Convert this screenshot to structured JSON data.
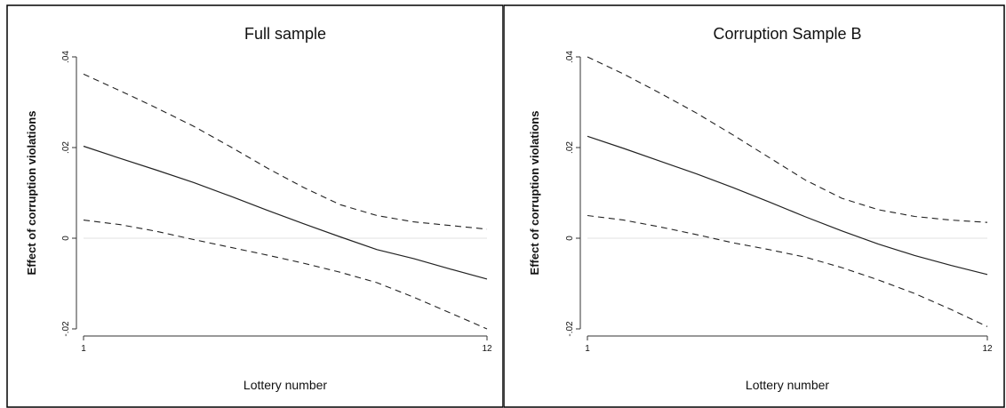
{
  "chart_data": [
    {
      "type": "line",
      "title": "Full sample",
      "xlabel": "Lottery number",
      "ylabel": "Effect of corruption violations",
      "xlim": [
        1,
        12
      ],
      "ylim": [
        -0.02,
        0.04
      ],
      "xticks": [
        {
          "value": 1,
          "label": "1"
        },
        {
          "value": 12,
          "label": "12"
        }
      ],
      "yticks": [
        {
          "value": -0.02,
          "label": "-.02"
        },
        {
          "value": 0,
          "label": "0"
        },
        {
          "value": 0.02,
          "label": ".02"
        },
        {
          "value": 0.04,
          "label": ".04"
        }
      ],
      "reference_line_y": 0,
      "x": [
        1,
        2,
        3,
        4,
        5,
        6,
        7,
        8,
        9,
        10,
        11,
        12
      ],
      "series": [
        {
          "role": "estimate",
          "style": "solid",
          "values": [
            0.0203,
            0.0176,
            0.015,
            0.0123,
            0.0093,
            0.0062,
            0.0032,
            0.0003,
            -0.0025,
            -0.0045,
            -0.0068,
            -0.009
          ]
        },
        {
          "role": "upper-bound",
          "style": "dashed",
          "values": [
            0.0362,
            0.0325,
            0.0287,
            0.0247,
            0.0202,
            0.0155,
            0.0112,
            0.0074,
            0.005,
            0.0036,
            0.0028,
            0.002
          ]
        },
        {
          "role": "lower-bound",
          "style": "dashed",
          "values": [
            0.004,
            0.003,
            0.0015,
            -0.0003,
            -0.002,
            -0.0037,
            -0.0055,
            -0.0075,
            -0.0098,
            -0.013,
            -0.0165,
            -0.02
          ]
        }
      ]
    },
    {
      "type": "line",
      "title": "Corruption Sample B",
      "xlabel": "Lottery number",
      "ylabel": "Effect of corruption violations",
      "xlim": [
        1,
        12
      ],
      "ylim": [
        -0.02,
        0.04
      ],
      "xticks": [
        {
          "value": 1,
          "label": "1"
        },
        {
          "value": 12,
          "label": "12"
        }
      ],
      "yticks": [
        {
          "value": -0.02,
          "label": "-.02"
        },
        {
          "value": 0,
          "label": "0"
        },
        {
          "value": 0.02,
          "label": ".02"
        },
        {
          "value": 0.04,
          "label": ".04"
        }
      ],
      "reference_line_y": 0,
      "x": [
        1,
        2,
        3,
        4,
        5,
        6,
        7,
        8,
        9,
        10,
        11,
        12
      ],
      "series": [
        {
          "role": "estimate",
          "style": "solid",
          "values": [
            0.0225,
            0.0198,
            0.017,
            0.0142,
            0.0112,
            0.008,
            0.0047,
            0.0016,
            -0.0013,
            -0.0038,
            -0.006,
            -0.008
          ]
        },
        {
          "role": "upper-bound",
          "style": "dashed",
          "values": [
            0.04,
            0.0362,
            0.032,
            0.0276,
            0.0228,
            0.0178,
            0.0128,
            0.0088,
            0.0063,
            0.0048,
            0.004,
            0.0035
          ]
        },
        {
          "role": "lower-bound",
          "style": "dashed",
          "values": [
            0.005,
            0.004,
            0.0025,
            0.0008,
            -0.001,
            -0.0025,
            -0.0042,
            -0.0065,
            -0.0092,
            -0.0122,
            -0.0157,
            -0.0195
          ]
        }
      ]
    }
  ]
}
